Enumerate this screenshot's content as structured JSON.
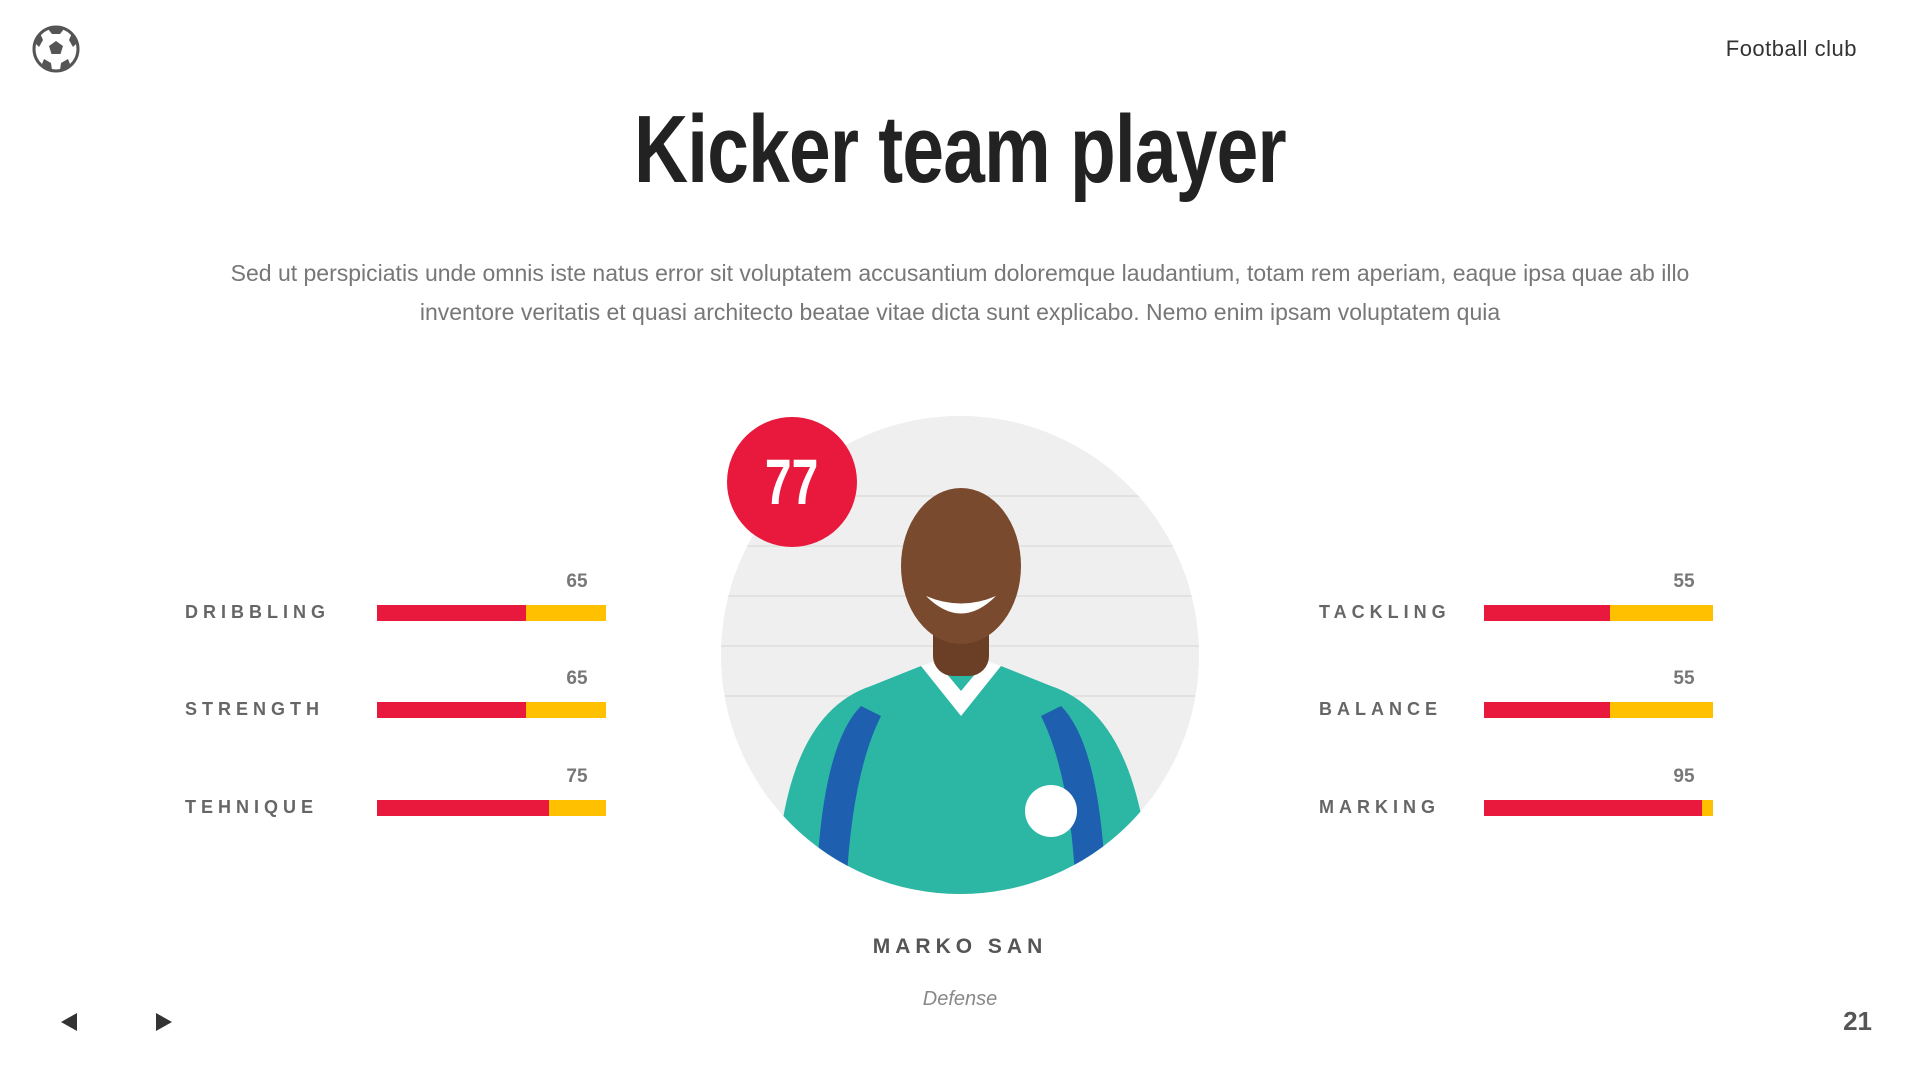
{
  "header": {
    "logo_icon": "soccer-ball-icon",
    "brand": "Football club"
  },
  "title": "Kicker team player",
  "description": "Sed ut perspiciatis unde omnis iste natus error sit voluptatem accusantium doloremque laudantium, totam rem aperiam, eaque ipsa quae ab illo inventore veritatis et quasi architecto beatae vitae dicta sunt explicabo. Nemo enim ipsam voluptatem quia",
  "player": {
    "number": "77",
    "name": "MARKO SAN",
    "position": "Defense"
  },
  "colors": {
    "accent_red": "#E8193C",
    "accent_yellow": "#FFC000"
  },
  "stats_left": [
    {
      "label": "DRIBBLING",
      "value": "65"
    },
    {
      "label": "STRENGTH",
      "value": "65"
    },
    {
      "label": "TEHNIQUE",
      "value": "75"
    }
  ],
  "stats_right": [
    {
      "label": "TACKLING",
      "value": "55"
    },
    {
      "label": "BALANCE",
      "value": "55"
    },
    {
      "label": "MARKING",
      "value": "95"
    }
  ],
  "footer": {
    "prev_icon": "triangle-left-icon",
    "next_icon": "triangle-right-icon",
    "page_number": "21"
  }
}
